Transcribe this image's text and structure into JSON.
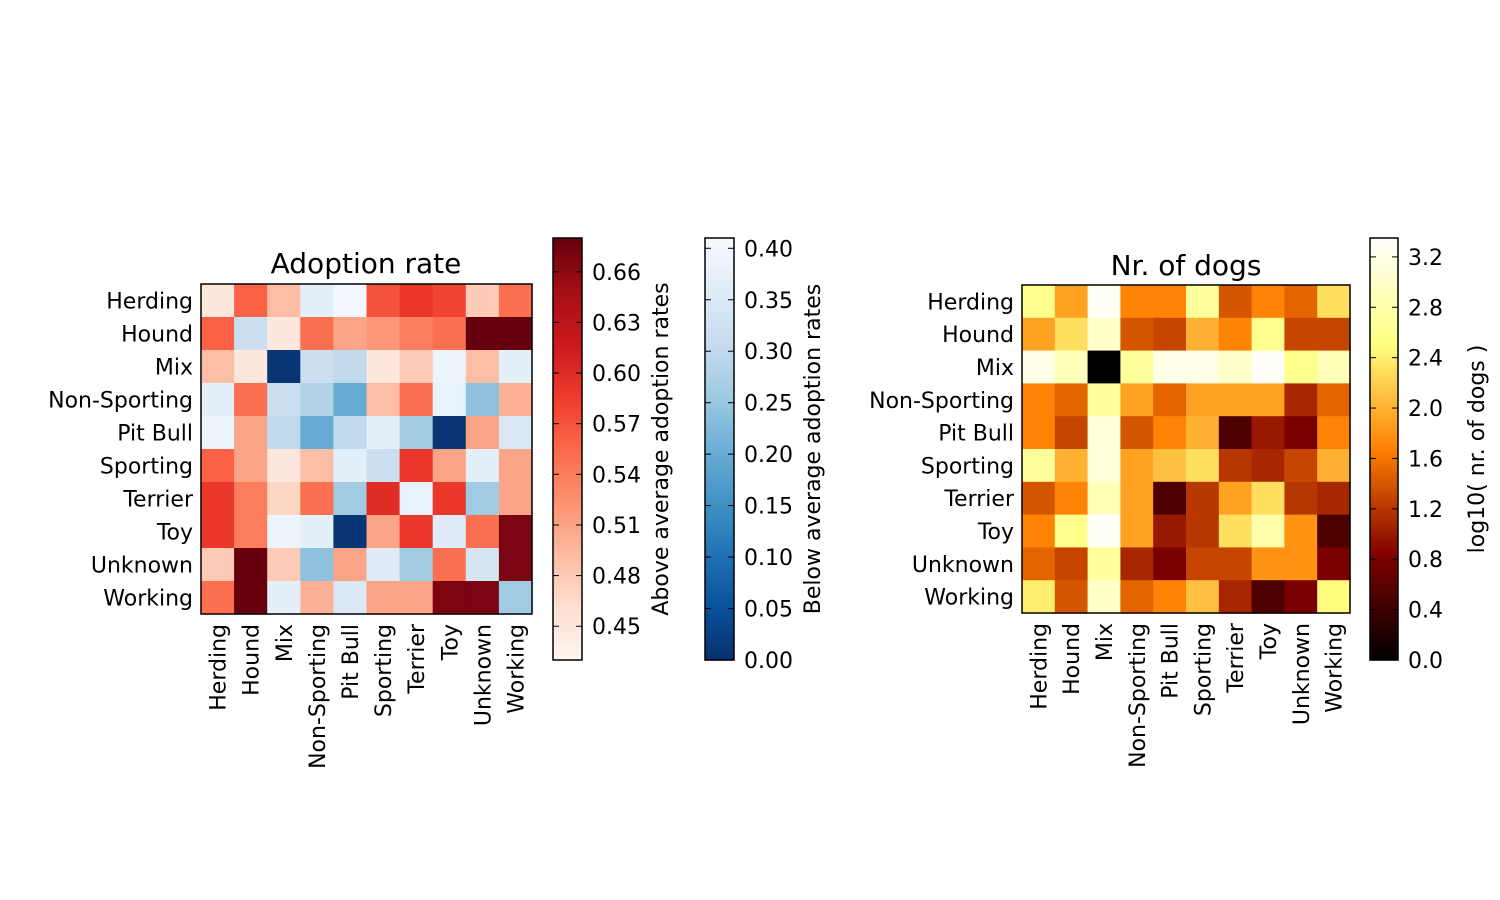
{
  "chart_data": [
    {
      "type": "heatmap",
      "title": "Adoption rate",
      "rows": [
        "Herding",
        "Hound",
        "Mix",
        "Non-Sporting",
        "Pit Bull",
        "Sporting",
        "Terrier",
        "Toy",
        "Unknown",
        "Working"
      ],
      "cols": [
        "Herding",
        "Hound",
        "Mix",
        "Non-Sporting",
        "Pit Bull",
        "Sporting",
        "Terrier",
        "Toy",
        "Unknown",
        "Working"
      ],
      "values": [
        [
          0.45,
          0.56,
          0.49,
          0.37,
          0.4,
          0.57,
          0.59,
          0.58,
          0.48,
          0.55
        ],
        [
          0.56,
          0.32,
          0.45,
          0.55,
          0.51,
          0.52,
          0.54,
          0.55,
          0.68,
          0.68
        ],
        [
          0.49,
          0.45,
          0.01,
          0.32,
          0.3,
          0.45,
          0.48,
          0.39,
          0.49,
          0.37
        ],
        [
          0.37,
          0.55,
          0.32,
          0.28,
          0.2,
          0.49,
          0.55,
          0.38,
          0.24,
          0.5
        ],
        [
          0.39,
          0.51,
          0.3,
          0.2,
          0.3,
          0.37,
          0.26,
          0.01,
          0.51,
          0.35
        ],
        [
          0.56,
          0.51,
          0.45,
          0.49,
          0.37,
          0.32,
          0.59,
          0.51,
          0.37,
          0.51
        ],
        [
          0.59,
          0.54,
          0.47,
          0.55,
          0.26,
          0.6,
          0.38,
          0.59,
          0.26,
          0.51
        ],
        [
          0.59,
          0.54,
          0.39,
          0.37,
          0.01,
          0.51,
          0.59,
          0.36,
          0.55,
          0.67
        ],
        [
          0.48,
          0.68,
          0.48,
          0.24,
          0.51,
          0.36,
          0.26,
          0.55,
          0.34,
          0.67
        ],
        [
          0.55,
          0.68,
          0.37,
          0.5,
          0.35,
          0.51,
          0.51,
          0.67,
          0.67,
          0.26
        ]
      ],
      "threshold": 0.43,
      "colorbars": [
        {
          "label": "Above average adoption rates",
          "cmap": "Reds",
          "range": [
            0.43,
            0.68
          ],
          "ticks": [
            "0.45",
            "0.48",
            "0.51",
            "0.54",
            "0.57",
            "0.60",
            "0.63",
            "0.66"
          ],
          "tick_values": [
            0.45,
            0.48,
            0.51,
            0.54,
            0.57,
            0.6,
            0.63,
            0.66
          ]
        },
        {
          "label": "Below average adoption rates",
          "cmap": "Blues_r",
          "range": [
            0.0,
            0.41
          ],
          "ticks": [
            "0.00",
            "0.05",
            "0.10",
            "0.15",
            "0.20",
            "0.25",
            "0.30",
            "0.35",
            "0.40"
          ],
          "tick_values": [
            0.0,
            0.05,
            0.1,
            0.15,
            0.2,
            0.25,
            0.3,
            0.35,
            0.4
          ]
        }
      ]
    },
    {
      "type": "heatmap",
      "title": "Nr. of dogs",
      "rows": [
        "Herding",
        "Hound",
        "Mix",
        "Non-Sporting",
        "Pit Bull",
        "Sporting",
        "Terrier",
        "Toy",
        "Unknown",
        "Working"
      ],
      "cols": [
        "Herding",
        "Hound",
        "Mix",
        "Non-Sporting",
        "Pit Bull",
        "Sporting",
        "Terrier",
        "Toy",
        "Unknown",
        "Working"
      ],
      "values": [
        [
          2.6,
          1.9,
          3.3,
          1.7,
          1.7,
          2.7,
          1.4,
          1.7,
          1.5,
          2.3
        ],
        [
          1.9,
          2.3,
          3.0,
          1.4,
          1.3,
          2.0,
          1.7,
          2.6,
          1.3,
          1.3
        ],
        [
          3.2,
          2.9,
          0.0,
          2.7,
          3.2,
          3.2,
          3.0,
          3.3,
          2.6,
          2.9
        ],
        [
          1.7,
          1.5,
          2.7,
          1.9,
          1.5,
          1.9,
          1.9,
          1.9,
          1.1,
          1.5
        ],
        [
          1.7,
          1.3,
          3.1,
          1.4,
          1.7,
          2.0,
          0.5,
          1.0,
          0.8,
          1.7
        ],
        [
          2.7,
          2.0,
          3.1,
          1.9,
          2.1,
          2.3,
          1.2,
          1.1,
          1.3,
          2.0
        ],
        [
          1.4,
          1.7,
          2.9,
          1.9,
          0.5,
          1.2,
          1.9,
          2.3,
          1.2,
          1.1
        ],
        [
          1.7,
          2.6,
          3.3,
          1.9,
          1.0,
          1.2,
          2.3,
          2.8,
          1.8,
          0.5
        ],
        [
          1.5,
          1.3,
          2.7,
          1.1,
          0.8,
          1.3,
          1.3,
          1.8,
          1.8,
          0.8
        ],
        [
          2.4,
          1.4,
          3.0,
          1.5,
          1.7,
          2.1,
          1.1,
          0.5,
          0.8,
          2.5
        ]
      ],
      "colorbars": [
        {
          "label": "log10( nr. of dogs )",
          "cmap": "afmhot",
          "range": [
            0.0,
            3.35
          ],
          "ticks": [
            "0.0",
            "0.4",
            "0.8",
            "1.2",
            "1.6",
            "2.0",
            "2.4",
            "2.8",
            "3.2"
          ],
          "tick_values": [
            0.0,
            0.4,
            0.8,
            1.2,
            1.6,
            2.0,
            2.4,
            2.8,
            3.2
          ]
        }
      ]
    }
  ]
}
